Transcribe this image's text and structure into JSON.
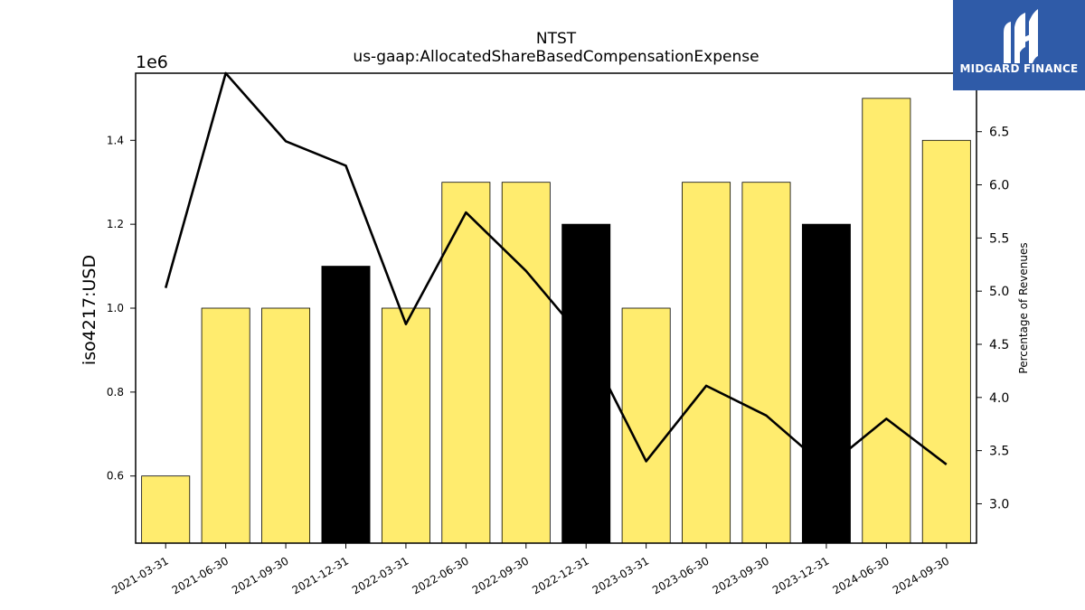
{
  "chart_data": {
    "type": "bar",
    "title": "NTST",
    "subtitle": "us-gaap:AllocatedShareBasedCompensationExpense",
    "ylabel": "iso4217:USD",
    "y_offset_label": "1e6",
    "y2label": "Percentage of Revenues",
    "categories": [
      "2021-03-31",
      "2021-06-30",
      "2021-09-30",
      "2021-12-31",
      "2022-03-31",
      "2022-06-30",
      "2022-09-30",
      "2022-12-31",
      "2023-03-31",
      "2023-06-30",
      "2023-09-30",
      "2023-12-31",
      "2024-06-30",
      "2024-09-30"
    ],
    "values": [
      600000,
      1000000,
      1000000,
      1100000,
      1000000,
      1300000,
      1300000,
      1200000,
      1000000,
      1300000,
      1300000,
      1200000,
      1500000,
      1400000
    ],
    "bar_colors": [
      "#ffec6e",
      "#ffec6e",
      "#ffec6e",
      "#000000",
      "#ffec6e",
      "#ffec6e",
      "#ffec6e",
      "#000000",
      "#ffec6e",
      "#ffec6e",
      "#ffec6e",
      "#000000",
      "#ffec6e",
      "#ffec6e"
    ],
    "ylim": [
      440000,
      1560000
    ],
    "yticks": [
      0.6,
      0.8,
      1.0,
      1.2,
      1.4
    ],
    "line": {
      "name": "Percentage of Revenues",
      "values": [
        5.03,
        7.05,
        6.41,
        6.18,
        4.69,
        5.74,
        5.19,
        4.52,
        3.4,
        4.11,
        3.83,
        3.34,
        3.8,
        3.37
      ],
      "color": "#000000"
    },
    "y2lim": [
      2.63,
      7.05
    ],
    "y2ticks": [
      "3.0",
      "3.5",
      "4.0",
      "4.5",
      "5.0",
      "5.5",
      "6.0",
      "6.5"
    ],
    "grid": false
  },
  "logo": {
    "text": "MIDGARD FINANCE",
    "bg_color": "#2f5ba8"
  }
}
